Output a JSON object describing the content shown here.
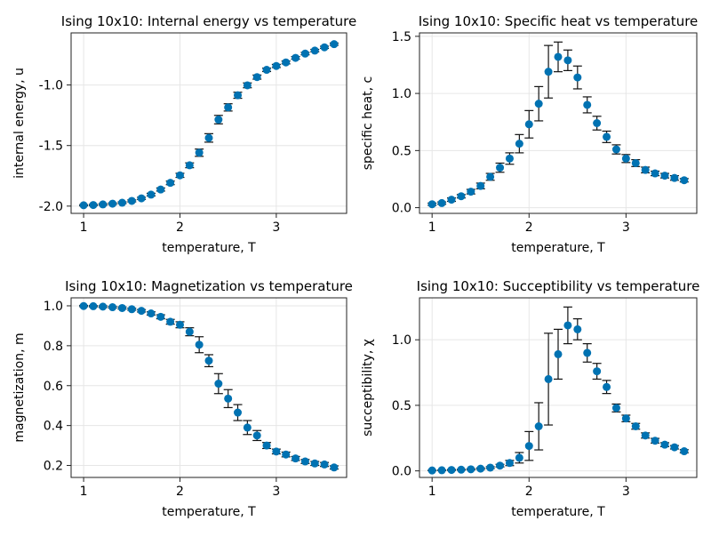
{
  "chart_data": [
    {
      "type": "scatter",
      "title": "Ising 10x10: Internal energy vs temperature",
      "xlabel": "temperature, T",
      "ylabel": "internal energy, u",
      "xlim": [
        0.87,
        3.73
      ],
      "ylim": [
        -2.06,
        -0.57
      ],
      "xticks": [
        1,
        2,
        3
      ],
      "xtick_labels": [
        "1",
        "2",
        "3"
      ],
      "yticks": [
        -2.0,
        -1.5,
        -1.0
      ],
      "ytick_labels": [
        "-2.0",
        "-1.5",
        "-1.0"
      ],
      "grid": true,
      "marker_color": "#0072b2",
      "x": [
        1.0,
        1.1,
        1.2,
        1.3,
        1.4,
        1.5,
        1.6,
        1.7,
        1.8,
        1.9,
        2.0,
        2.1,
        2.2,
        2.3,
        2.4,
        2.5,
        2.6,
        2.7,
        2.8,
        2.9,
        3.0,
        3.1,
        3.2,
        3.3,
        3.4,
        3.5,
        3.6
      ],
      "values": [
        -1.993,
        -1.991,
        -1.986,
        -1.98,
        -1.972,
        -1.957,
        -1.936,
        -1.905,
        -1.863,
        -1.808,
        -1.746,
        -1.663,
        -1.559,
        -1.437,
        -1.286,
        -1.185,
        -1.085,
        -1.003,
        -0.935,
        -0.875,
        -0.843,
        -0.814,
        -0.776,
        -0.741,
        -0.716,
        -0.689,
        -0.663
      ],
      "errors": [
        0.005,
        0.005,
        0.006,
        0.006,
        0.007,
        0.008,
        0.009,
        0.011,
        0.013,
        0.015,
        0.017,
        0.02,
        0.03,
        0.035,
        0.035,
        0.03,
        0.025,
        0.02,
        0.017,
        0.014,
        0.013,
        0.012,
        0.011,
        0.01,
        0.01,
        0.009,
        0.009
      ]
    },
    {
      "type": "scatter",
      "title": "Ising 10x10: Specific heat vs temperature",
      "xlabel": "temperature, T",
      "ylabel": "specific heat, c",
      "xlim": [
        0.87,
        3.73
      ],
      "ylim": [
        -0.05,
        1.53
      ],
      "xticks": [
        1,
        2,
        3
      ],
      "xtick_labels": [
        "1",
        "2",
        "3"
      ],
      "yticks": [
        0.0,
        0.5,
        1.0,
        1.5
      ],
      "ytick_labels": [
        "0.0",
        "0.5",
        "1.0",
        "1.5"
      ],
      "grid": true,
      "marker_color": "#0072b2",
      "x": [
        1.0,
        1.1,
        1.2,
        1.3,
        1.4,
        1.5,
        1.6,
        1.7,
        1.8,
        1.9,
        2.0,
        2.1,
        2.2,
        2.3,
        2.4,
        2.5,
        2.6,
        2.7,
        2.8,
        2.9,
        3.0,
        3.1,
        3.2,
        3.3,
        3.4,
        3.5,
        3.6
      ],
      "values": [
        0.03,
        0.04,
        0.07,
        0.1,
        0.14,
        0.19,
        0.27,
        0.35,
        0.43,
        0.56,
        0.73,
        0.91,
        1.19,
        1.32,
        1.29,
        1.14,
        0.9,
        0.74,
        0.62,
        0.51,
        0.43,
        0.39,
        0.33,
        0.3,
        0.28,
        0.26,
        0.24
      ],
      "errors": [
        0.01,
        0.01,
        0.015,
        0.015,
        0.02,
        0.025,
        0.03,
        0.04,
        0.05,
        0.08,
        0.12,
        0.15,
        0.23,
        0.13,
        0.09,
        0.1,
        0.07,
        0.06,
        0.05,
        0.04,
        0.035,
        0.03,
        0.025,
        0.02,
        0.02,
        0.02,
        0.015
      ]
    },
    {
      "type": "scatter",
      "title": "Ising 10x10: Magnetization vs temperature",
      "xlabel": "temperature, T",
      "ylabel": "magnetization, m",
      "xlim": [
        0.87,
        3.73
      ],
      "ylim": [
        0.14,
        1.04
      ],
      "xticks": [
        1,
        2,
        3
      ],
      "xtick_labels": [
        "1",
        "2",
        "3"
      ],
      "yticks": [
        0.2,
        0.4,
        0.6,
        0.8,
        1.0
      ],
      "ytick_labels": [
        "0.2",
        "0.4",
        "0.6",
        "0.8",
        "1.0"
      ],
      "grid": true,
      "marker_color": "#0072b2",
      "x": [
        1.0,
        1.1,
        1.2,
        1.3,
        1.4,
        1.5,
        1.6,
        1.7,
        1.8,
        1.9,
        2.0,
        2.1,
        2.2,
        2.3,
        2.4,
        2.5,
        2.6,
        2.7,
        2.8,
        2.9,
        3.0,
        3.1,
        3.2,
        3.3,
        3.4,
        3.5,
        3.6
      ],
      "values": [
        0.999,
        0.998,
        0.996,
        0.993,
        0.989,
        0.983,
        0.975,
        0.962,
        0.945,
        0.92,
        0.905,
        0.87,
        0.805,
        0.725,
        0.61,
        0.535,
        0.465,
        0.39,
        0.35,
        0.3,
        0.27,
        0.255,
        0.235,
        0.22,
        0.21,
        0.205,
        0.19
      ],
      "errors": [
        0.003,
        0.003,
        0.004,
        0.004,
        0.005,
        0.005,
        0.006,
        0.008,
        0.01,
        0.012,
        0.015,
        0.02,
        0.04,
        0.03,
        0.05,
        0.045,
        0.04,
        0.035,
        0.025,
        0.015,
        0.012,
        0.012,
        0.01,
        0.01,
        0.01,
        0.01,
        0.008
      ]
    },
    {
      "type": "scatter",
      "title": "Ising 10x10: Succeptibility vs temperature",
      "xlabel": "temperature, T",
      "ylabel": "succeptibility, χ",
      "xlim": [
        0.87,
        3.73
      ],
      "ylim": [
        -0.05,
        1.32
      ],
      "xticks": [
        1,
        2,
        3
      ],
      "xtick_labels": [
        "1",
        "2",
        "3"
      ],
      "yticks": [
        0.0,
        0.5,
        1.0
      ],
      "ytick_labels": [
        "0.0",
        "0.5",
        "1.0"
      ],
      "grid": true,
      "marker_color": "#0072b2",
      "x": [
        1.0,
        1.1,
        1.2,
        1.3,
        1.4,
        1.5,
        1.6,
        1.7,
        1.8,
        1.9,
        2.0,
        2.1,
        2.2,
        2.3,
        2.4,
        2.5,
        2.6,
        2.7,
        2.8,
        2.9,
        3.0,
        3.1,
        3.2,
        3.3,
        3.4,
        3.5,
        3.6
      ],
      "values": [
        0.003,
        0.005,
        0.007,
        0.009,
        0.012,
        0.017,
        0.025,
        0.04,
        0.06,
        0.1,
        0.19,
        0.34,
        0.7,
        0.89,
        1.11,
        1.08,
        0.9,
        0.76,
        0.64,
        0.48,
        0.4,
        0.34,
        0.27,
        0.23,
        0.2,
        0.18,
        0.15
      ],
      "errors": [
        0.002,
        0.002,
        0.003,
        0.003,
        0.004,
        0.005,
        0.007,
        0.01,
        0.02,
        0.04,
        0.11,
        0.18,
        0.35,
        0.19,
        0.14,
        0.08,
        0.07,
        0.06,
        0.05,
        0.03,
        0.025,
        0.022,
        0.02,
        0.018,
        0.015,
        0.013,
        0.012
      ]
    }
  ]
}
